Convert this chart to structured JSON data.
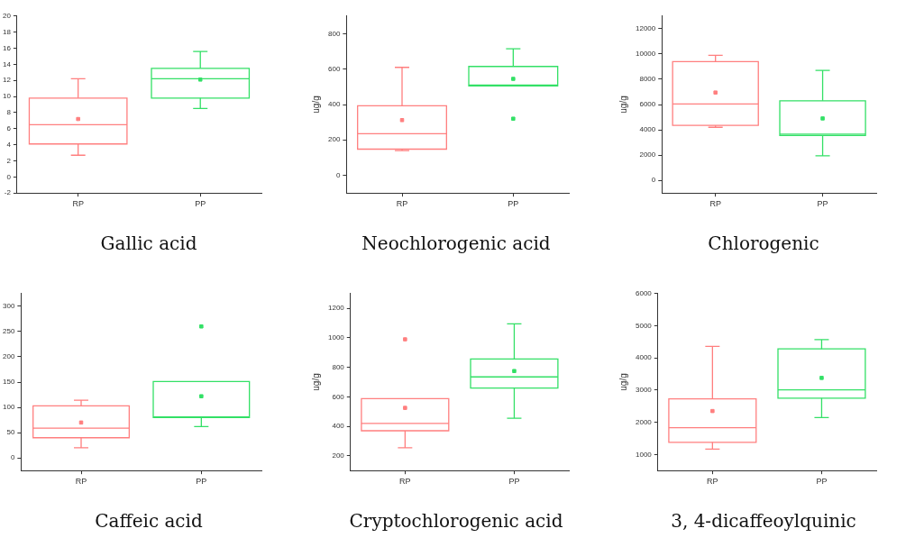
{
  "chart_data": [
    {
      "type": "box",
      "title": "Gallic acid",
      "categories": [
        "RP",
        "PP"
      ],
      "colors": [
        "#ff7f7f",
        "#33e066"
      ],
      "ylim": [
        -2,
        20
      ],
      "yticks": [
        -2,
        0,
        2,
        4,
        6,
        8,
        10,
        12,
        14,
        16,
        18,
        20
      ],
      "grid": false,
      "boxes": [
        {
          "low": 2.7,
          "q1": 4.1,
          "median": 6.5,
          "q3": 9.8,
          "high": 12.2,
          "mean": 7.2
        },
        {
          "low": 8.5,
          "q1": 9.8,
          "median": 12.2,
          "q3": 13.5,
          "high": 15.6,
          "mean": 12.1
        }
      ]
    },
    {
      "type": "box",
      "title": "Neochlorogenic acid",
      "ylabel": "ug/g",
      "categories": [
        "RP",
        "PP"
      ],
      "colors": [
        "#ff7f7f",
        "#33e066"
      ],
      "ylim": [
        -100,
        900
      ],
      "yticks": [
        0,
        200,
        400,
        600,
        800
      ],
      "grid": false,
      "boxes": [
        {
          "low": 140,
          "q1": 148,
          "median": 235,
          "q3": 393,
          "high": 610,
          "mean": 312
        },
        {
          "low": 505,
          "q1": 505,
          "median": 510,
          "q3": 615,
          "high": 715,
          "mean": 545,
          "outliers": [
            320
          ]
        }
      ]
    },
    {
      "type": "box",
      "title": "Chlorogenic",
      "ylabel": "ug/g",
      "categories": [
        "RP",
        "PP"
      ],
      "colors": [
        "#ff7f7f",
        "#33e066"
      ],
      "ylim": [
        -1000,
        13000
      ],
      "yticks": [
        0,
        2000,
        4000,
        6000,
        8000,
        10000,
        12000
      ],
      "grid": false,
      "boxes": [
        {
          "low": 4200,
          "q1": 4350,
          "median": 6050,
          "q3": 9400,
          "high": 9900,
          "mean": 6950
        },
        {
          "low": 1950,
          "q1": 3550,
          "median": 3650,
          "q3": 6300,
          "high": 8700,
          "mean": 4900
        }
      ]
    },
    {
      "type": "box",
      "title": "Caffeic acid",
      "categories": [
        "RP",
        "PP"
      ],
      "colors": [
        "#ff7f7f",
        "#33e066"
      ],
      "ylim": [
        -25,
        325
      ],
      "yticks": [
        0,
        50,
        100,
        150,
        200,
        250,
        300
      ],
      "grid": false,
      "boxes": [
        {
          "low": 20,
          "q1": 40,
          "median": 59,
          "q3": 103,
          "high": 114,
          "mean": 70
        },
        {
          "low": 62,
          "q1": 80,
          "median": 81,
          "q3": 151,
          "high": 151,
          "mean": 122,
          "outliers": [
            260
          ]
        }
      ]
    },
    {
      "type": "box",
      "title": "Cryptochlorogenic acid",
      "ylabel": "ug/g",
      "categories": [
        "RP",
        "PP"
      ],
      "colors": [
        "#ff7f7f",
        "#33e066"
      ],
      "ylim": [
        100,
        1300
      ],
      "yticks": [
        200,
        400,
        600,
        800,
        1000,
        1200
      ],
      "grid": false,
      "boxes": [
        {
          "low": 255,
          "q1": 370,
          "median": 420,
          "q3": 588,
          "high": 588,
          "mean": 525,
          "outliers": [
            990
          ]
        },
        {
          "low": 455,
          "q1": 660,
          "median": 735,
          "q3": 857,
          "high": 1095,
          "mean": 775
        }
      ]
    },
    {
      "type": "box",
      "title": "3, 4-dicaffeoylquinic",
      "ylabel": "ug/g",
      "categories": [
        "RP",
        "PP"
      ],
      "colors": [
        "#ff7f7f",
        "#33e066"
      ],
      "ylim": [
        500,
        6000
      ],
      "yticks": [
        1000,
        2000,
        3000,
        4000,
        5000,
        6000
      ],
      "grid": false,
      "boxes": [
        {
          "low": 1170,
          "q1": 1380,
          "median": 1830,
          "q3": 2730,
          "high": 4360,
          "mean": 2350
        },
        {
          "low": 2150,
          "q1": 2750,
          "median": 3010,
          "q3": 4280,
          "high": 4570,
          "mean": 3380
        }
      ]
    }
  ]
}
